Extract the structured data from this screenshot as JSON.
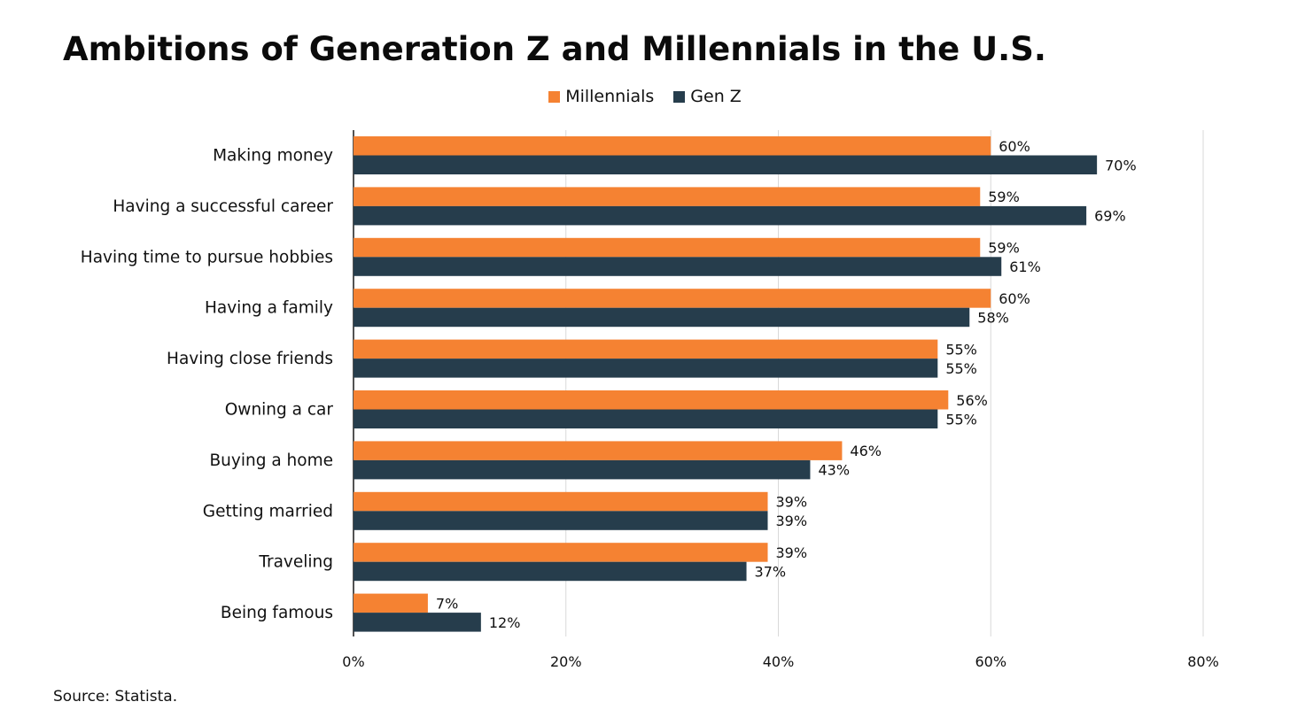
{
  "chart_data": {
    "type": "bar",
    "orientation": "horizontal",
    "title": "Ambitions of Generation Z and Millennials in the U.S.",
    "categories": [
      "Making money",
      "Having a successful career",
      "Having time to pursue hobbies",
      "Having a family",
      "Having close friends",
      "Owning a car",
      "Buying a home",
      "Getting married",
      "Traveling",
      "Being famous"
    ],
    "series": [
      {
        "name": "Millennials",
        "color": "#f58232",
        "values": [
          60,
          59,
          59,
          60,
          55,
          56,
          46,
          39,
          39,
          7
        ]
      },
      {
        "name": "Gen Z",
        "color": "#263d4c",
        "values": [
          70,
          69,
          61,
          58,
          55,
          55,
          43,
          39,
          37,
          12
        ]
      }
    ],
    "xlim": [
      0,
      80
    ],
    "xticks": [
      0,
      20,
      40,
      60,
      80
    ],
    "tick_suffix": "%",
    "value_suffix": "%",
    "grid": true,
    "legend_position": "top-center",
    "xlabel": "",
    "ylabel": ""
  },
  "source": "Source: Statista."
}
